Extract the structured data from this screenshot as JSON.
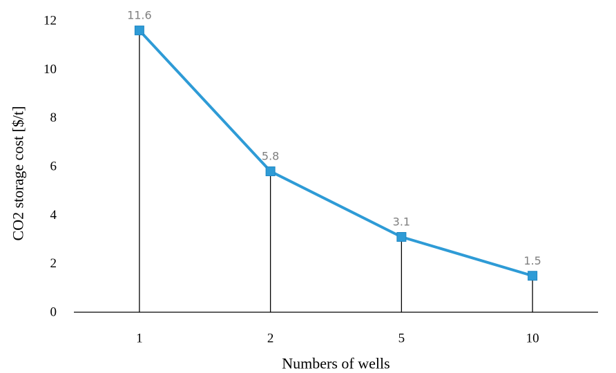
{
  "chart_data": {
    "type": "line",
    "categories": [
      "1",
      "2",
      "5",
      "10"
    ],
    "series": [
      {
        "values": [
          11.6,
          5.8,
          3.1,
          1.5
        ],
        "data_labels": [
          "11.6",
          "5.8",
          "3.1",
          "1.5"
        ]
      }
    ],
    "xlabel": "Numbers of wells",
    "ylabel": "CO2 storage cost [$/t]",
    "ylim": [
      0,
      12
    ],
    "yticks": [
      "0",
      "2",
      "4",
      "6",
      "8",
      "10",
      "12"
    ],
    "grid": false,
    "drop_lines": true,
    "legend": "none",
    "colors": {
      "series": "#2e9bd6",
      "marker": "#2e9bd6",
      "drop_line": "#000000",
      "axis": "#000000",
      "data_label": "#7f7f7f"
    }
  }
}
